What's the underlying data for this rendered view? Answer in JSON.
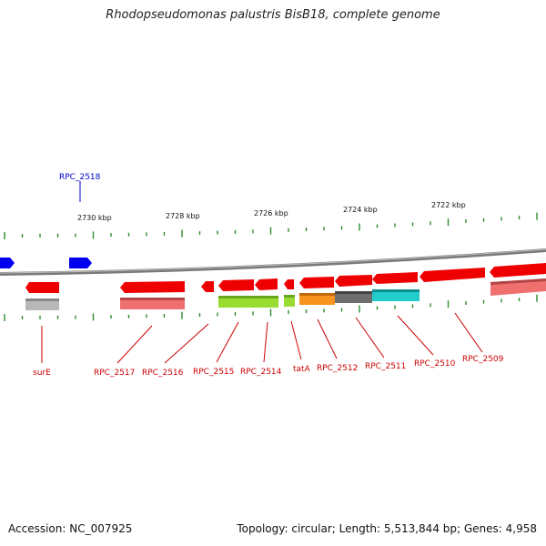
{
  "title": "Rhodopseudomonas palustris BisB18, complete genome",
  "footer": {
    "accession": "Accession: NC_007925",
    "summary": "Topology: circular; Length: 5,513,844 bp; Genes: 4,958"
  },
  "colors": {
    "forward_gene": "#0000ee",
    "reverse_gene": "#ee0000",
    "reverse_gene_light": "#f07070",
    "backbone": "#808080",
    "tick": "#2e8b2e",
    "label_red": "#cc0000",
    "label_blue": "#0000cc"
  },
  "scale_labels": [
    {
      "id": "kbp-2730",
      "text": "2730 kbp"
    },
    {
      "id": "kbp-2728",
      "text": "2728 kbp"
    },
    {
      "id": "kbp-2726",
      "text": "2726 kbp"
    },
    {
      "id": "kbp-2724",
      "text": "2724 kbp"
    },
    {
      "id": "kbp-2722",
      "text": "2722 kbp"
    }
  ],
  "genes_forward": [
    {
      "id": "unlabeled-forward"
    },
    {
      "id": "RPC_2518",
      "label": "RPC_2518"
    }
  ],
  "genes_reverse": [
    {
      "id": "surE",
      "label": "surE"
    },
    {
      "id": "RPC_2517",
      "label": "RPC_2517"
    },
    {
      "id": "RPC_2516",
      "label": "RPC_2516"
    },
    {
      "id": "RPC_2515",
      "label": "RPC_2515"
    },
    {
      "id": "RPC_2514",
      "label": "RPC_2514"
    },
    {
      "id": "tatA",
      "label": "tatA"
    },
    {
      "id": "RPC_2512",
      "label": "RPC_2512"
    },
    {
      "id": "RPC_2511",
      "label": "RPC_2511"
    },
    {
      "id": "RPC_2510",
      "label": "RPC_2510"
    },
    {
      "id": "RPC_2509",
      "label": "RPC_2509"
    },
    {
      "id": "unlabeled-reverse"
    }
  ],
  "feature_bars": [
    {
      "id": "surE-feature",
      "color": "#b8b8b8"
    },
    {
      "id": "RPC_2517-feature",
      "color": "#f07070"
    },
    {
      "id": "RPC_2515-feature",
      "color": "#99dd33"
    },
    {
      "id": "RPC_2514-feature",
      "color": "#99dd33"
    },
    {
      "id": "tatA-feature",
      "color": "#99dd33"
    },
    {
      "id": "RPC_2512-feature",
      "color": "#f7931e"
    },
    {
      "id": "RPC_2511-feature",
      "color": "#6e6e6e"
    },
    {
      "id": "RPC_2510-feature",
      "color": "#22cccc"
    },
    {
      "id": "RPC_2509-feature",
      "color": "#f07070"
    }
  ]
}
